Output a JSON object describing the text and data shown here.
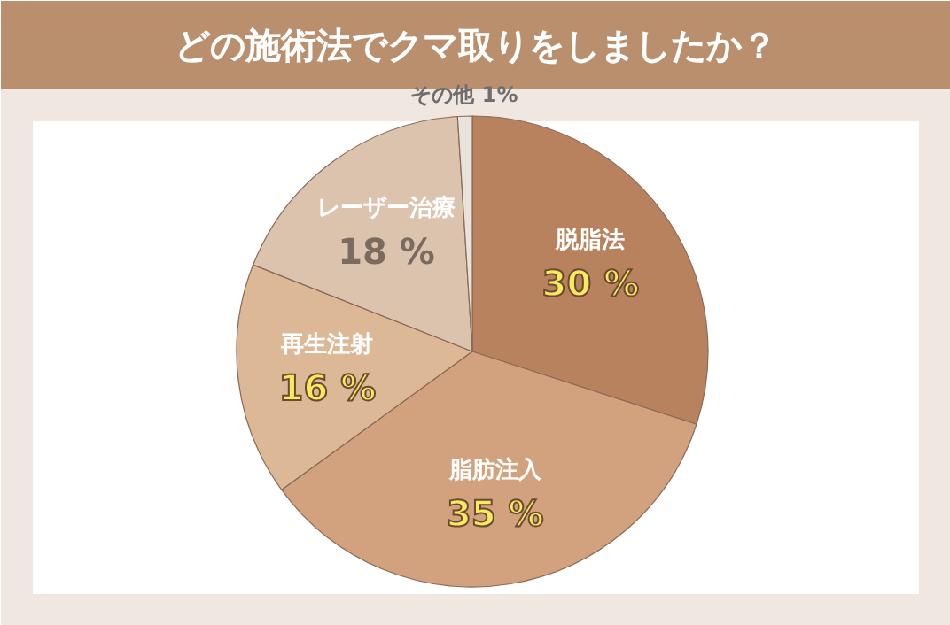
{
  "chart_data": {
    "type": "pie",
    "title": "どの施術法でクマ取りをしましたか？",
    "categories": [
      "脱脂法",
      "脂肪注入",
      "再生注射",
      "レーザー治療",
      "その他"
    ],
    "values": [
      30,
      35,
      16,
      18,
      1
    ],
    "colors": [
      "#b9825e",
      "#d2a27f",
      "#ddb896",
      "#dcc3ae",
      "#e9e3de"
    ],
    "value_labels": [
      "30 %",
      "35 %",
      "16 %",
      "18 %",
      "1%"
    ]
  }
}
